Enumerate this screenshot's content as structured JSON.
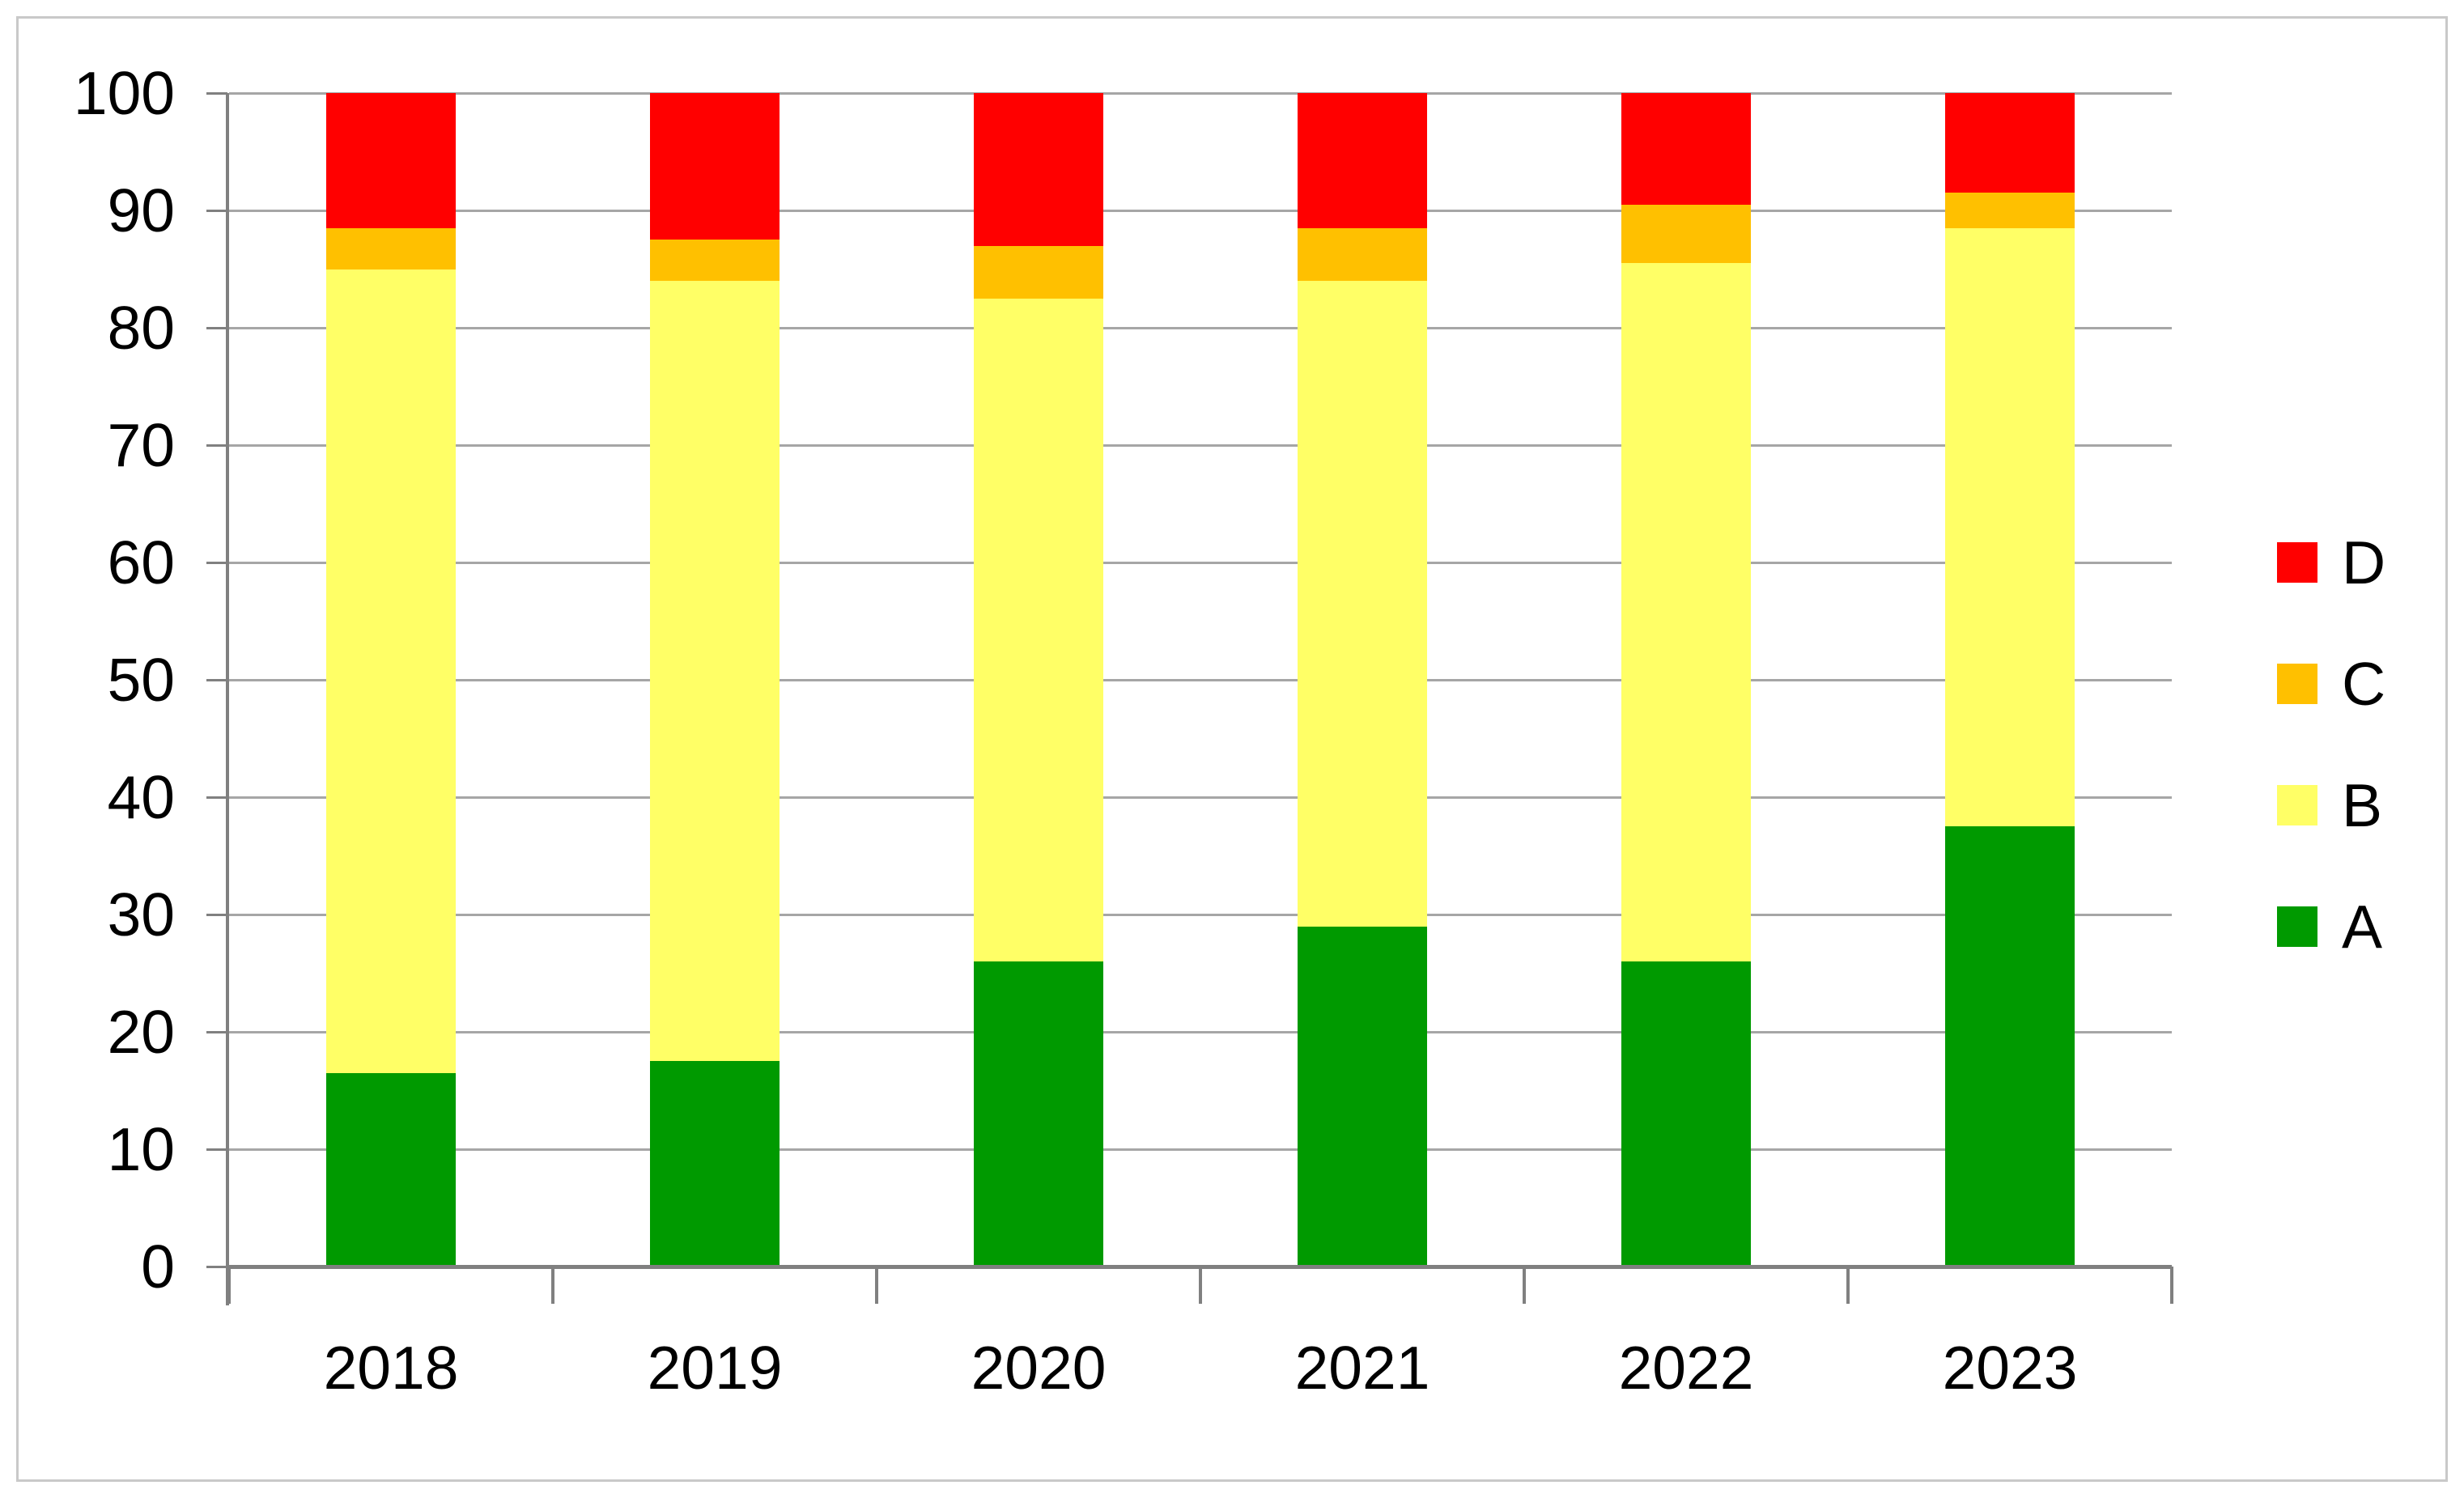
{
  "chart_data": {
    "type": "bar",
    "stacked": true,
    "title": "",
    "categories": [
      "2018",
      "2019",
      "2020",
      "2021",
      "2022",
      "2023"
    ],
    "series": [
      {
        "name": "A",
        "color": "#009A00",
        "values": [
          16.5,
          17.5,
          26,
          29,
          26,
          37.5
        ]
      },
      {
        "name": "B",
        "color": "#FFFF66",
        "values": [
          68.5,
          66.5,
          56.5,
          55,
          59.5,
          51
        ]
      },
      {
        "name": "C",
        "color": "#FFC000",
        "values": [
          3.5,
          3.5,
          4.5,
          4.5,
          5,
          3
        ]
      },
      {
        "name": "D",
        "color": "#FF0000",
        "values": [
          11.5,
          12.5,
          13,
          11.5,
          9.5,
          8.5
        ]
      }
    ],
    "legend": {
      "position": "right",
      "order_top_to_bottom": [
        "D",
        "C",
        "B",
        "A"
      ]
    },
    "y_axis": {
      "min": 0,
      "max": 100,
      "tick_interval": 10,
      "tick_labels": [
        "0",
        "10",
        "20",
        "30",
        "40",
        "50",
        "60",
        "70",
        "80",
        "90",
        "100"
      ]
    },
    "x_axis": {
      "tick_labels": [
        "2018",
        "2019",
        "2020",
        "2021",
        "2022",
        "2023"
      ]
    },
    "grid": true,
    "colors": {
      "gridline": "#A6A6A6",
      "axis": "#808080",
      "chart_border": "#C9C9C9",
      "text": "#000000",
      "background": "#FFFFFF"
    }
  }
}
